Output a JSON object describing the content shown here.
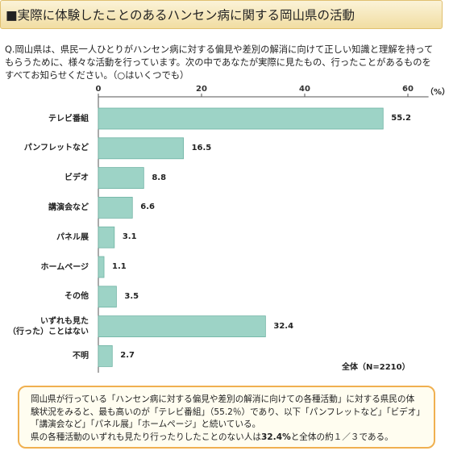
{
  "header": {
    "title": "■実際に体験したことのあるハンセン病に関する岡山県の活動"
  },
  "chart_data": {
    "type": "bar",
    "question": "Q.岡山県は、県民一人ひとりがハンセン病に対する偏見や差別の解消に向けて正しい知識と理解を持ってもらうために、様々な活動を行っています。次の中であなたが実際に見たもの、行ったことがあるものをすべてお知らせください。（○はいくつでも）",
    "categories": [
      "テレビ番組",
      "パンフレットなど",
      "ビデオ",
      "講演会など",
      "パネル展",
      "ホームページ",
      "その他",
      "いずれも見た\n（行った）ことはない",
      "不明"
    ],
    "values": [
      55.2,
      16.5,
      8.8,
      6.6,
      3.1,
      1.1,
      3.5,
      32.4,
      2.7
    ],
    "color": "#9dd3c6",
    "xlim": [
      0,
      64
    ],
    "xticks": [
      0,
      20,
      40,
      60
    ],
    "unit_label": "（%）",
    "total_label": "全体（N=2210）"
  },
  "note": {
    "paragraph1": "岡山県が行っている「ハンセン病に対する偏見や差別の解消に向けての各種活動」に対する県民の体験状況をみると、最も高いのが「テレビ番組」（55.2％）であり、以下「パンフレットなど」「ビデオ」「講演会など」「パネル展」「ホームページ」と続いている。",
    "paragraph2": [
      "県の各種活動のいずれも見たり行ったりしたことのない人は",
      "32.4%",
      "と全体の約１／３である。"
    ]
  }
}
